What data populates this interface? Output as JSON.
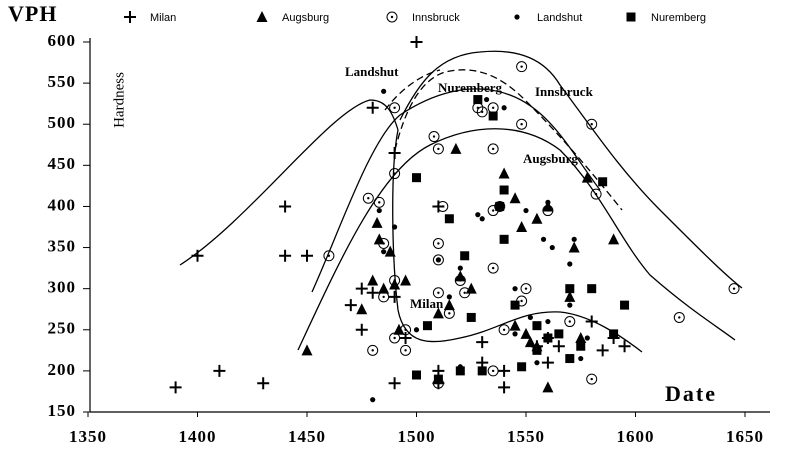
{
  "chart_data": {
    "type": "scatter",
    "title": "VPH",
    "ylabel": "Hardness",
    "xlabel": "Date",
    "annotations": [
      "Landshut",
      "Nuremberg",
      "Innsbruck",
      "Augsburg",
      "Milan"
    ],
    "xlim": [
      1350,
      1650
    ],
    "ylim": [
      150,
      600
    ],
    "xticks": [
      1350,
      1400,
      1450,
      1500,
      1550,
      1600,
      1650
    ],
    "yticks": [
      150,
      200,
      250,
      300,
      350,
      400,
      450,
      500,
      550,
      600
    ],
    "series": [
      {
        "name": "Milan",
        "marker": "plus",
        "color": "#000000",
        "x": [
          1390,
          1410,
          1430,
          1400,
          1440,
          1440,
          1450,
          1480,
          1475,
          1470,
          1475,
          1480,
          1490,
          1490,
          1490,
          1495,
          1500,
          1510,
          1510,
          1510,
          1530,
          1530,
          1540,
          1540,
          1555,
          1560,
          1560,
          1565,
          1580,
          1585,
          1590,
          1595
        ],
        "values": [
          180,
          200,
          185,
          340,
          400,
          340,
          340,
          520,
          300,
          280,
          250,
          295,
          465,
          290,
          185,
          240,
          600,
          400,
          200,
          185,
          235,
          210,
          180,
          200,
          230,
          240,
          210,
          230,
          260,
          225,
          240,
          230
        ]
      },
      {
        "name": "Augsburg",
        "marker": "triangle",
        "color": "#000000",
        "x": [
          1450,
          1475,
          1480,
          1482,
          1483,
          1485,
          1488,
          1490,
          1492,
          1495,
          1510,
          1515,
          1518,
          1520,
          1525,
          1540,
          1545,
          1548,
          1545,
          1550,
          1552,
          1555,
          1555,
          1560,
          1560,
          1570,
          1572,
          1578,
          1590,
          1575
        ],
        "values": [
          225,
          275,
          310,
          380,
          360,
          300,
          345,
          305,
          250,
          310,
          270,
          280,
          470,
          315,
          300,
          440,
          410,
          375,
          255,
          245,
          235,
          385,
          230,
          400,
          180,
          290,
          350,
          435,
          360,
          240
        ]
      },
      {
        "name": "Innsbruck",
        "marker": "circle-dot",
        "color": "#000000",
        "x": [
          1460,
          1478,
          1480,
          1483,
          1485,
          1485,
          1490,
          1490,
          1490,
          1490,
          1495,
          1495,
          1508,
          1510,
          1510,
          1510,
          1510,
          1510,
          1512,
          1515,
          1520,
          1522,
          1528,
          1530,
          1535,
          1535,
          1535,
          1538,
          1540,
          1535,
          1548,
          1548,
          1550,
          1548,
          1560,
          1570,
          1580,
          1580,
          1582,
          1620,
          1645,
          1535
        ],
        "values": [
          340,
          410,
          225,
          405,
          290,
          355,
          520,
          440,
          310,
          240,
          225,
          250,
          485,
          470,
          355,
          335,
          295,
          185,
          400,
          270,
          310,
          295,
          520,
          515,
          470,
          395,
          325,
          400,
          250,
          520,
          570,
          500,
          300,
          285,
          395,
          260,
          500,
          190,
          415,
          265,
          300,
          200
        ]
      },
      {
        "name": "Landshut",
        "marker": "dot",
        "color": "#000000",
        "x": [
          1480,
          1483,
          1485,
          1490,
          1485,
          1500,
          1510,
          1515,
          1520,
          1528,
          1530,
          1532,
          1540,
          1545,
          1550,
          1552,
          1558,
          1560,
          1562,
          1570,
          1572,
          1570,
          1560,
          1578,
          1575,
          1545,
          1520,
          1555
        ],
        "values": [
          165,
          395,
          540,
          375,
          345,
          250,
          335,
          290,
          325,
          390,
          385,
          530,
          520,
          300,
          395,
          265,
          360,
          405,
          350,
          330,
          360,
          280,
          260,
          240,
          215,
          245,
          205,
          210
        ]
      },
      {
        "name": "Nuremberg",
        "marker": "square",
        "color": "#000000",
        "x": [
          1500,
          1500,
          1505,
          1510,
          1515,
          1520,
          1522,
          1525,
          1528,
          1530,
          1535,
          1540,
          1538,
          1540,
          1545,
          1548,
          1555,
          1560,
          1565,
          1570,
          1570,
          1575,
          1580,
          1585,
          1590,
          1595,
          1555
        ],
        "values": [
          435,
          195,
          255,
          190,
          385,
          200,
          340,
          265,
          530,
          200,
          510,
          420,
          400,
          360,
          280,
          205,
          225,
          240,
          245,
          215,
          300,
          230,
          300,
          430,
          245,
          280,
          255
        ]
      }
    ]
  }
}
